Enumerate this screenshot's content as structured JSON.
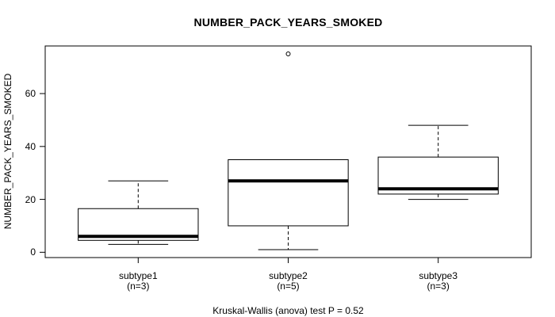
{
  "chart_data": {
    "type": "boxplot",
    "title": "NUMBER_PACK_YEARS_SMOKED",
    "ylabel": "NUMBER_PACK_YEARS_SMOKED",
    "xlabel": "",
    "footer": "Kruskal-Wallis (anova) test P = 0.52",
    "ylim": [
      -2,
      78
    ],
    "yticks": [
      0,
      20,
      40,
      60
    ],
    "grid": false,
    "legend": "none",
    "colors": {
      "stroke": "#000000",
      "box_fill": "#ffffff",
      "background": "#ffffff"
    },
    "categories": [
      "subtype1",
      "subtype2",
      "subtype3"
    ],
    "groups": [
      {
        "label": "subtype1",
        "sublabel": "(n=3)",
        "n": 3,
        "whisker_low": 3,
        "q1": 4.5,
        "median": 6,
        "q3": 16.5,
        "whisker_high": 27,
        "outliers": []
      },
      {
        "label": "subtype2",
        "sublabel": "(n=5)",
        "n": 5,
        "whisker_low": 1,
        "q1": 10,
        "median": 27,
        "q3": 35,
        "whisker_high": 35,
        "outliers": [
          75
        ]
      },
      {
        "label": "subtype3",
        "sublabel": "(n=3)",
        "n": 3,
        "whisker_low": 20,
        "q1": 22,
        "median": 24,
        "q3": 36,
        "whisker_high": 48,
        "outliers": []
      }
    ]
  }
}
